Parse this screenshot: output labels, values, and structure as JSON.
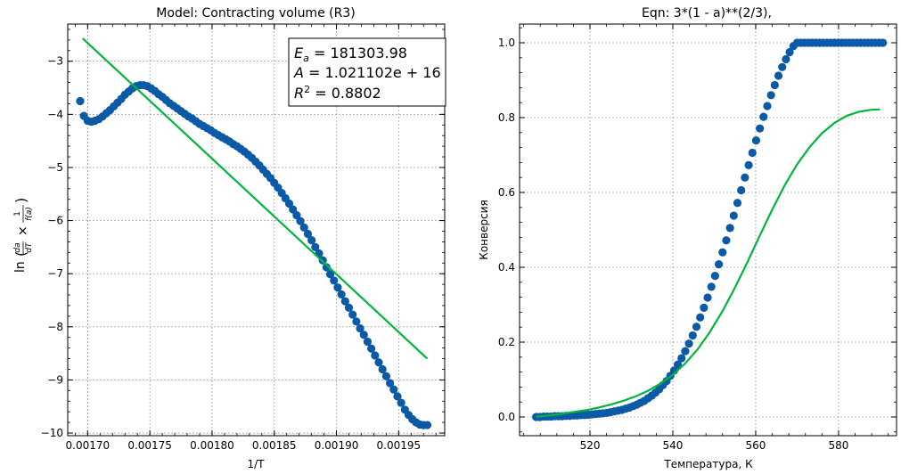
{
  "chart_data": [
    {
      "type": "scatter",
      "title": "Model: Contracting volume (R3)",
      "xlabel": "1/T",
      "ylabel_text": "ln",
      "ylabel_frac_num": "da",
      "ylabel_frac_den": "dT",
      "ylabel_times": "×",
      "ylabel_frac2_num": "1",
      "ylabel_frac2_den": "f(a)",
      "xlim": [
        0.001684,
        0.001987
      ],
      "ylim": [
        -10.05,
        -2.3
      ],
      "xticks": [
        0.0017,
        0.00175,
        0.0018,
        0.00185,
        0.0019,
        0.00195
      ],
      "xtick_labels": [
        "0.00170",
        "0.00175",
        "0.00180",
        "0.00185",
        "0.00190",
        "0.00195"
      ],
      "yticks": [
        -10,
        -9,
        -8,
        -7,
        -6,
        -5,
        -4,
        -3
      ],
      "ytick_labels": [
        "−10",
        "−9",
        "−8",
        "−7",
        "−6",
        "−5",
        "−4",
        "−3"
      ],
      "annotation": {
        "ea_label": "E",
        "ea_sub": "a",
        "ea_value": " = 181303.98",
        "a_label": "A",
        "a_value": " = 1.021102e + 16",
        "r2_label": "R",
        "r2_sup": "2",
        "r2_value": " = 0.8802"
      },
      "fit_line": {
        "x": [
          0.001696,
          0.001973
        ],
        "y": [
          -2.57,
          -8.6
        ],
        "color": "#00b53c"
      },
      "scatter_color": "#0a5aa6",
      "points_x": [
        0.001694,
        0.001697,
        0.0017,
        0.001703,
        0.001706,
        0.001709,
        0.001712,
        0.001715,
        0.001718,
        0.001721,
        0.001724,
        0.001727,
        0.00173,
        0.001733,
        0.001736,
        0.001739,
        0.001742,
        0.001745,
        0.001748,
        0.001751,
        0.001754,
        0.001757,
        0.00176,
        0.001763,
        0.001766,
        0.001769,
        0.001772,
        0.001775,
        0.001778,
        0.001781,
        0.001784,
        0.001787,
        0.00179,
        0.001793,
        0.001796,
        0.001799,
        0.001802,
        0.001805,
        0.001808,
        0.001811,
        0.001814,
        0.001817,
        0.00182,
        0.001823,
        0.001826,
        0.001829,
        0.001832,
        0.001835,
        0.001838,
        0.001841,
        0.001844,
        0.001847,
        0.00185,
        0.001853,
        0.001856,
        0.001859,
        0.001862,
        0.001865,
        0.001868,
        0.001871,
        0.001874,
        0.001877,
        0.00188,
        0.001883,
        0.001886,
        0.001889,
        0.001892,
        0.001895,
        0.001898,
        0.001901,
        0.001904,
        0.001907,
        0.00191,
        0.001913,
        0.001916,
        0.001919,
        0.001922,
        0.001925,
        0.001928,
        0.001931,
        0.001934,
        0.001937,
        0.00194,
        0.001943,
        0.001946,
        0.001949,
        0.001952,
        0.001955,
        0.001958,
        0.001961,
        0.001964,
        0.001967,
        0.00197,
        0.001973
      ],
      "points_y": [
        -3.75,
        -4.03,
        -4.12,
        -4.14,
        -4.12,
        -4.09,
        -4.04,
        -3.98,
        -3.92,
        -3.85,
        -3.78,
        -3.71,
        -3.63,
        -3.57,
        -3.51,
        -3.47,
        -3.45,
        -3.45,
        -3.47,
        -3.51,
        -3.56,
        -3.62,
        -3.67,
        -3.73,
        -3.79,
        -3.84,
        -3.89,
        -3.94,
        -3.99,
        -4.04,
        -4.08,
        -4.13,
        -4.18,
        -4.22,
        -4.26,
        -4.3,
        -4.35,
        -4.39,
        -4.43,
        -4.47,
        -4.51,
        -4.56,
        -4.6,
        -4.65,
        -4.7,
        -4.76,
        -4.82,
        -4.89,
        -4.96,
        -5.04,
        -5.12,
        -5.2,
        -5.29,
        -5.38,
        -5.48,
        -5.58,
        -5.68,
        -5.79,
        -5.9,
        -6.01,
        -6.13,
        -6.25,
        -6.37,
        -6.5,
        -6.62,
        -6.75,
        -6.88,
        -7.01,
        -7.13,
        -7.26,
        -7.39,
        -7.52,
        -7.64,
        -7.77,
        -7.9,
        -8.03,
        -8.15,
        -8.28,
        -8.41,
        -8.54,
        -8.67,
        -8.8,
        -8.93,
        -9.06,
        -9.18,
        -9.31,
        -9.43,
        -9.56,
        -9.66,
        -9.74,
        -9.8,
        -9.84,
        -9.85,
        -9.85
      ]
    },
    {
      "type": "scatter",
      "title": "Eqn: 3*(1 - a)**(2/3),",
      "xlabel": "Температура, К",
      "ylabel": "Конверсия",
      "xlim": [
        503.0,
        594.0
      ],
      "ylim": [
        -0.05,
        1.05
      ],
      "xticks": [
        520,
        540,
        560,
        580
      ],
      "xtick_labels": [
        "520",
        "540",
        "560",
        "580"
      ],
      "yticks": [
        0.0,
        0.2,
        0.4,
        0.6,
        0.8,
        1.0
      ],
      "ytick_labels": [
        "0.0",
        "0.2",
        "0.4",
        "0.6",
        "0.8",
        "1.0"
      ],
      "scatter_color": "#0a5aa6",
      "fit_color": "#00b53c",
      "points_x": [
        507.0,
        507.9,
        508.8,
        509.7,
        510.6,
        511.5,
        512.4,
        513.3,
        514.2,
        515.1,
        516.0,
        516.9,
        517.8,
        518.7,
        519.6,
        520.5,
        521.4,
        522.3,
        523.2,
        524.1,
        525.0,
        525.9,
        526.8,
        527.7,
        528.6,
        529.5,
        530.4,
        531.3,
        532.2,
        533.1,
        534.0,
        534.9,
        535.8,
        536.7,
        537.6,
        538.5,
        539.4,
        540.3,
        541.2,
        542.1,
        543.0,
        543.9,
        544.8,
        545.7,
        546.6,
        547.5,
        548.4,
        549.3,
        550.2,
        551.1,
        552.0,
        552.9,
        553.8,
        554.7,
        555.6,
        556.5,
        557.4,
        558.3,
        559.2,
        560.1,
        561.0,
        561.9,
        562.8,
        563.7,
        564.6,
        565.5,
        566.4,
        567.3,
        568.2,
        569.1,
        570.0,
        570.9,
        571.8,
        572.7,
        573.6,
        574.5,
        575.4,
        576.3,
        577.2,
        578.1,
        579.0,
        579.9,
        580.8,
        581.7,
        582.6,
        583.5,
        584.4,
        585.3,
        586.2,
        587.1,
        588.0,
        588.9,
        589.8,
        590.7
      ],
      "points_y": [
        0.0,
        0.0,
        0.001,
        0.001,
        0.001,
        0.002,
        0.002,
        0.002,
        0.003,
        0.003,
        0.004,
        0.004,
        0.005,
        0.005,
        0.006,
        0.007,
        0.008,
        0.009,
        0.01,
        0.011,
        0.013,
        0.015,
        0.017,
        0.019,
        0.022,
        0.025,
        0.029,
        0.033,
        0.038,
        0.043,
        0.05,
        0.057,
        0.065,
        0.074,
        0.085,
        0.096,
        0.11,
        0.124,
        0.14,
        0.157,
        0.176,
        0.196,
        0.218,
        0.241,
        0.266,
        0.292,
        0.319,
        0.348,
        0.377,
        0.408,
        0.44,
        0.472,
        0.505,
        0.538,
        0.572,
        0.606,
        0.64,
        0.673,
        0.706,
        0.739,
        0.771,
        0.802,
        0.831,
        0.86,
        0.887,
        0.912,
        0.935,
        0.956,
        0.975,
        0.991,
        1.0,
        1.0,
        1.0,
        1.0,
        1.0,
        1.0,
        1.0,
        1.0,
        1.0,
        1.0,
        1.0,
        1.0,
        1.0,
        1.0,
        1.0,
        1.0,
        1.0,
        1.0,
        1.0,
        1.0,
        1.0,
        1.0,
        1.0,
        1.0
      ],
      "fit_x": [
        507,
        510,
        513,
        516,
        519,
        522,
        525,
        528,
        531,
        534,
        537,
        540,
        543,
        546,
        549,
        552,
        555,
        558,
        561,
        564,
        567,
        570,
        573,
        576,
        579,
        582,
        585,
        588,
        590
      ],
      "fit_y": [
        0.001,
        0.004,
        0.008,
        0.013,
        0.018,
        0.025,
        0.033,
        0.043,
        0.055,
        0.07,
        0.089,
        0.113,
        0.143,
        0.181,
        0.228,
        0.283,
        0.346,
        0.414,
        0.485,
        0.554,
        0.619,
        0.675,
        0.721,
        0.758,
        0.786,
        0.805,
        0.816,
        0.821,
        0.822
      ]
    }
  ]
}
